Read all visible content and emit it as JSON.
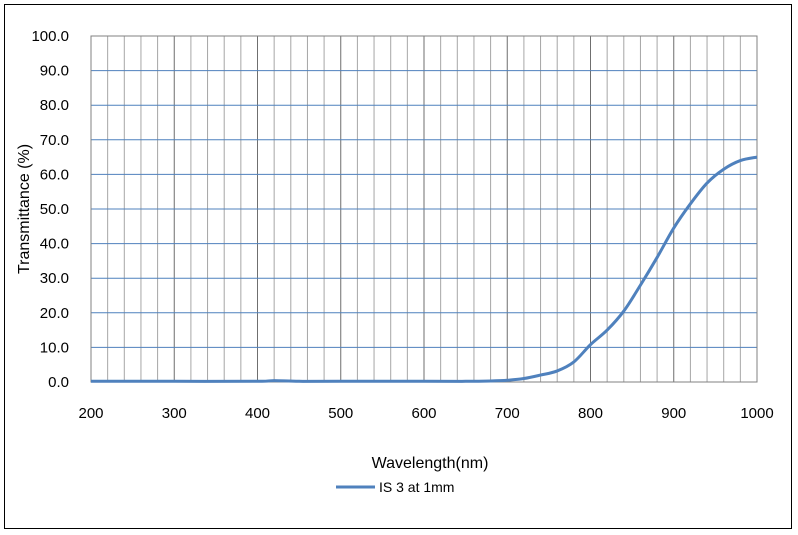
{
  "chart_data": {
    "type": "line",
    "title": "",
    "xlabel": "Wavelength(nm)",
    "ylabel": "Transmittance (%)",
    "xlim": [
      200,
      1000
    ],
    "ylim": [
      0,
      100
    ],
    "x_ticks": [
      "200",
      "300",
      "400",
      "500",
      "600",
      "700",
      "800",
      "900",
      "1000"
    ],
    "y_ticks": [
      "0.0",
      "10.0",
      "20.0",
      "30.0",
      "40.0",
      "50.0",
      "60.0",
      "70.0",
      "80.0",
      "90.0",
      "100.0"
    ],
    "grid": true,
    "legend_position": "bottom",
    "series": [
      {
        "name": "IS 3 at 1mm",
        "color": "#4f81bd",
        "x": [
          200,
          300,
          400,
          420,
          450,
          500,
          600,
          650,
          680,
          700,
          720,
          740,
          760,
          780,
          800,
          820,
          840,
          860,
          880,
          900,
          920,
          940,
          960,
          980,
          1000
        ],
        "y": [
          0.2,
          0.2,
          0.2,
          0.4,
          0.2,
          0.2,
          0.2,
          0.2,
          0.3,
          0.5,
          1.0,
          2.0,
          3.2,
          5.8,
          10.8,
          15.0,
          20.5,
          28.0,
          36.0,
          44.5,
          51.5,
          57.5,
          61.5,
          64.0,
          65.0
        ]
      }
    ]
  }
}
